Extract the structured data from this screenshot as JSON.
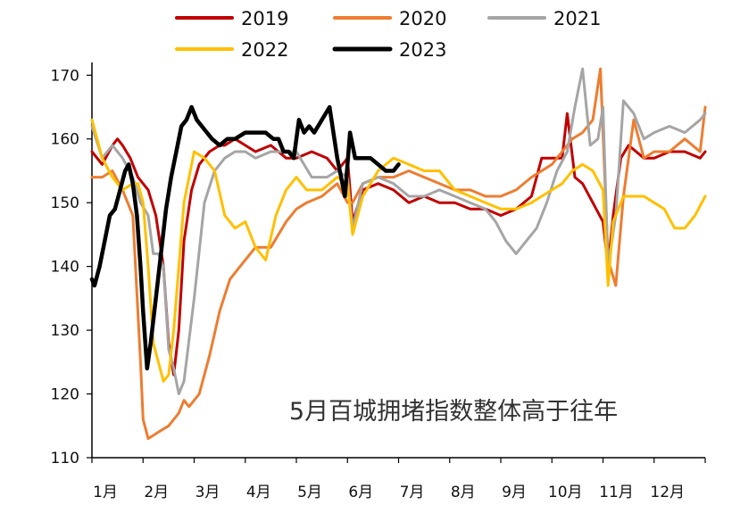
{
  "chart_data": {
    "type": "line",
    "annotation": "5月百城拥堵指数整体高于往年",
    "xlabels": [
      "1月",
      "2月",
      "3月",
      "4月",
      "5月",
      "6月",
      "7月",
      "8月",
      "9月",
      "10月",
      "11月",
      "12月"
    ],
    "yticks": [
      110,
      120,
      130,
      140,
      150,
      160,
      170
    ],
    "ylim": [
      110,
      172
    ],
    "xlim": [
      0,
      12
    ],
    "legend_position": "top",
    "series": [
      {
        "name": "2019",
        "color": "#C00000",
        "x": [
          0,
          0.2,
          0.4,
          0.5,
          0.6,
          0.75,
          0.9,
          1.1,
          1.25,
          1.4,
          1.5,
          1.6,
          1.7,
          1.8,
          1.95,
          2.1,
          2.3,
          2.5,
          2.6,
          2.8,
          3.0,
          3.2,
          3.5,
          3.8,
          4.0,
          4.3,
          4.6,
          4.8,
          5.0,
          5.1,
          5.3,
          5.6,
          5.9,
          6.2,
          6.5,
          6.8,
          7.1,
          7.4,
          7.7,
          8.0,
          8.3,
          8.6,
          8.8,
          9.0,
          9.2,
          9.3,
          9.45,
          9.6,
          9.8,
          10.0,
          10.1,
          10.2,
          10.35,
          10.5,
          10.8,
          11.0,
          11.3,
          11.6,
          11.9,
          12.0
        ],
        "y": [
          158,
          156,
          159,
          160,
          159,
          157,
          154,
          152,
          148,
          140,
          128,
          123,
          130,
          144,
          152,
          156,
          158,
          159,
          159,
          160,
          159,
          158,
          159,
          157,
          157,
          158,
          157,
          155,
          157,
          147,
          152,
          153,
          152,
          150,
          151,
          150,
          150,
          149,
          149,
          148,
          149,
          151,
          157,
          157,
          157,
          164,
          154,
          153,
          150,
          147,
          140,
          148,
          157,
          159,
          157,
          157,
          158,
          158,
          157,
          158
        ]
      },
      {
        "name": "2020",
        "color": "#ED7D31",
        "x": [
          0,
          0.2,
          0.4,
          0.6,
          0.8,
          0.95,
          1.0,
          1.1,
          1.3,
          1.5,
          1.7,
          1.8,
          1.9,
          2.1,
          2.3,
          2.5,
          2.7,
          2.9,
          3.2,
          3.5,
          3.8,
          4.0,
          4.2,
          4.5,
          4.8,
          5.0,
          5.1,
          5.3,
          5.6,
          5.9,
          6.2,
          6.5,
          6.8,
          7.1,
          7.4,
          7.7,
          8.0,
          8.3,
          8.6,
          8.8,
          9.0,
          9.2,
          9.4,
          9.6,
          9.8,
          9.95,
          10.1,
          10.25,
          10.4,
          10.6,
          10.8,
          11.0,
          11.3,
          11.6,
          11.9,
          12.0
        ],
        "y": [
          154,
          154,
          155,
          152,
          148,
          125,
          116,
          113,
          114,
          115,
          117,
          119,
          118,
          120,
          126,
          133,
          138,
          140,
          143,
          143,
          147,
          149,
          150,
          151,
          153,
          150,
          150,
          153,
          154,
          154,
          155,
          154,
          153,
          152,
          152,
          151,
          151,
          152,
          154,
          155,
          156,
          158,
          160,
          161,
          163,
          171,
          141,
          137,
          151,
          163,
          157,
          158,
          158,
          160,
          158,
          165
        ]
      },
      {
        "name": "2021",
        "color": "#A5A5A5",
        "x": [
          0,
          0.2,
          0.4,
          0.6,
          0.8,
          0.95,
          1.1,
          1.2,
          1.3,
          1.4,
          1.5,
          1.6,
          1.7,
          1.8,
          2.0,
          2.2,
          2.4,
          2.6,
          2.8,
          3.0,
          3.2,
          3.5,
          3.8,
          4.0,
          4.3,
          4.6,
          4.8,
          5.0,
          5.1,
          5.3,
          5.6,
          5.9,
          6.2,
          6.5,
          6.8,
          7.1,
          7.4,
          7.7,
          7.9,
          8.1,
          8.3,
          8.5,
          8.7,
          8.9,
          9.1,
          9.3,
          9.45,
          9.6,
          9.75,
          9.9,
          10.0,
          10.1,
          10.25,
          10.4,
          10.6,
          10.8,
          11.0,
          11.3,
          11.6,
          11.9,
          12.0
        ],
        "y": [
          162,
          157,
          159,
          157,
          154,
          150,
          148,
          142,
          142,
          140,
          127,
          124,
          120,
          122,
          135,
          150,
          155,
          157,
          158,
          158,
          157,
          158,
          158,
          158,
          154,
          154,
          155,
          154,
          146,
          153,
          154,
          153,
          151,
          151,
          152,
          151,
          150,
          149,
          147,
          144,
          142,
          144,
          146,
          150,
          155,
          158,
          165,
          171,
          159,
          160,
          165,
          140,
          148,
          166,
          164,
          160,
          161,
          162,
          161,
          163,
          164
        ]
      },
      {
        "name": "2022",
        "color": "#FFC000",
        "x": [
          0,
          0.2,
          0.4,
          0.6,
          0.8,
          0.9,
          1.0,
          1.1,
          1.2,
          1.3,
          1.4,
          1.5,
          1.6,
          1.8,
          2.0,
          2.2,
          2.4,
          2.6,
          2.8,
          3.0,
          3.2,
          3.4,
          3.6,
          3.8,
          4.0,
          4.2,
          4.5,
          4.8,
          5.0,
          5.1,
          5.3,
          5.6,
          5.9,
          6.2,
          6.5,
          6.8,
          7.1,
          7.4,
          7.7,
          8.0,
          8.3,
          8.6,
          8.8,
          9.0,
          9.2,
          9.4,
          9.6,
          9.8,
          10.0,
          10.1,
          10.2,
          10.4,
          10.6,
          10.8,
          11.0,
          11.2,
          11.4,
          11.6,
          11.8,
          12.0
        ],
        "y": [
          163,
          157,
          154,
          152,
          153,
          153,
          150,
          140,
          128,
          125,
          122,
          123,
          130,
          150,
          158,
          157,
          155,
          148,
          146,
          147,
          143,
          141,
          148,
          152,
          154,
          152,
          152,
          154,
          153,
          145,
          151,
          155,
          157,
          156,
          155,
          155,
          152,
          151,
          150,
          149,
          149,
          150,
          151,
          152,
          153,
          155,
          156,
          155,
          152,
          137,
          147,
          151,
          151,
          151,
          150,
          149,
          146,
          146,
          148,
          151
        ]
      },
      {
        "name": "2023",
        "color": "#000000",
        "x": [
          0,
          0.05,
          0.15,
          0.25,
          0.35,
          0.45,
          0.55,
          0.65,
          0.72,
          0.8,
          0.88,
          0.95,
          1.0,
          1.08,
          1.15,
          1.25,
          1.35,
          1.45,
          1.55,
          1.65,
          1.75,
          1.85,
          1.95,
          2.05,
          2.15,
          2.25,
          2.35,
          2.5,
          2.65,
          2.8,
          3.0,
          3.2,
          3.4,
          3.55,
          3.65,
          3.75,
          3.85,
          3.95,
          4.05,
          4.15,
          4.25,
          4.35,
          4.5,
          4.65,
          4.8,
          4.95,
          5.05,
          5.15,
          5.3,
          5.45,
          5.6,
          5.75,
          5.9,
          6.0
        ],
        "y": [
          138,
          137,
          140,
          144,
          148,
          149,
          152,
          155,
          156,
          153,
          148,
          140,
          133,
          124,
          128,
          135,
          142,
          149,
          154,
          158,
          162,
          163,
          165,
          163,
          162,
          161,
          160,
          159,
          160,
          160,
          161,
          161,
          161,
          160,
          160,
          158,
          158,
          157,
          163,
          161,
          162,
          161,
          163,
          165,
          157,
          151,
          161,
          157,
          157,
          157,
          156,
          155,
          155,
          156
        ]
      }
    ]
  }
}
